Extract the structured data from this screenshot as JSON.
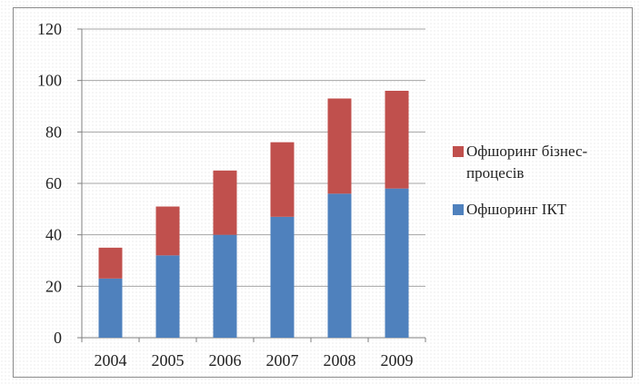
{
  "chart_data": {
    "type": "bar",
    "stacked": true,
    "categories": [
      "2004",
      "2005",
      "2006",
      "2007",
      "2008",
      "2009"
    ],
    "series": [
      {
        "name": "Офшоринг ІКТ",
        "color": "#4f81bd",
        "values": [
          23,
          32,
          40,
          47,
          56,
          58
        ]
      },
      {
        "name": "Офшоринг бізнес-процесів",
        "color": "#c0504d",
        "values": [
          12,
          19,
          25,
          29,
          37,
          38
        ]
      }
    ],
    "title": "",
    "xlabel": "",
    "ylabel": "",
    "ylim": [
      0,
      120
    ],
    "yticks": [
      "0",
      "20",
      "40",
      "60",
      "80",
      "100",
      "120"
    ],
    "grid": true,
    "legend_position": "right",
    "legend": [
      {
        "label_lines": [
          "Офшоринг бізнес-",
          "процесів"
        ],
        "color": "#c0504d"
      },
      {
        "label_lines": [
          "Офшоринг ІКТ"
        ],
        "color": "#4f81bd"
      }
    ]
  }
}
